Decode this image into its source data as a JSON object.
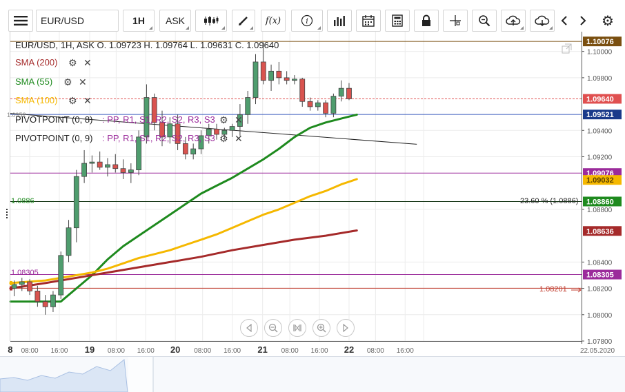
{
  "toolbar": {
    "menu_icon": "hamburger-icon",
    "symbol": "EUR/USD",
    "timeframe": "1H",
    "price_type": "ASK",
    "icons": [
      "candlestick-icon",
      "draw-pen-icon",
      "function-icon",
      "info-icon",
      "bar-chart-icon",
      "calendar-icon",
      "calculator-icon",
      "lock-icon",
      "crosshair-icon",
      "zoom-icon",
      "cloud-upload-icon",
      "cloud-download-icon",
      "chevron-left-icon",
      "chevron-right-icon",
      "gear-icon"
    ],
    "fx_label": "f(x)"
  },
  "legend": {
    "ohlc": "EUR/USD, 1H, ASK    O. 1.09723 H. 1.09764 L. 1.09631 C. 1.09640",
    "sma200": "SMA (200)",
    "sma55": "SMA (55)",
    "sma100": "SMA (100)",
    "pivot1_name": "PIVOTPOINT (0, 8)",
    "pivot1_fields": ": PP, R1, S1, R2, S2, R3, S3",
    "pivot2_name": "PIVOTPOINT (0, 9)",
    "pivot2_fields": ": PP, R1, S1, R2, S2, R3, S3",
    "fib_label": "23.60 % (1.0886)",
    "left_label_top": "1.0886",
    "left_label_low": "1.0830",
    "left_label_low2": "1.08305",
    "left_label_high": "1.10076",
    "hidden_label": "1.0952",
    "right_arrow_label": "1.08201"
  },
  "colors": {
    "sma200": "#a52a2a",
    "sma55": "#1e8a1e",
    "sma100": "#f5b800",
    "candle_up": "#4f9d6e",
    "candle_down": "#d9534f",
    "pivot_purple": "#9b2b9b",
    "blue_line": "#3b5bbd",
    "fib_line": "#1a3a1a"
  },
  "chart_data": {
    "type": "candlestick",
    "symbol": "EUR/USD",
    "timeframe": "1H",
    "ylim": [
      1.078,
      1.1015
    ],
    "y_ticks": [
      "1.10000",
      "1.09800",
      "1.09400",
      "1.09200",
      "1.08800",
      "1.08400",
      "1.08200",
      "1.08000",
      "1.07800"
    ],
    "x_ticks": [
      "8",
      "08:00",
      "16:00",
      "19",
      "08:00",
      "16:00",
      "20",
      "08:00",
      "16:00",
      "21",
      "08:00",
      "16:00",
      "22",
      "08:00",
      "16:00",
      "22.05.2020"
    ],
    "x_tick_positions": [
      -0.5,
      2,
      5.8,
      9.7,
      13.1,
      16.9,
      20.7,
      24.2,
      28,
      31.9,
      35.4,
      39.2,
      43,
      46.4,
      50.2,
      52.6
    ],
    "price_labels": [
      {
        "text": "1.10076",
        "value": 1.10076,
        "color": "#7a4f10"
      },
      {
        "text": "1.09640",
        "value": 1.0964,
        "color": "#e05050"
      },
      {
        "text": "1.09521",
        "value": 1.09521,
        "color": "#1a3a8a"
      },
      {
        "text": "1.09076",
        "value": 1.09076,
        "color": "#9b2b9b"
      },
      {
        "text": "1.09032",
        "value": 1.09032,
        "color": "#f5b800"
      },
      {
        "text": "1.08860",
        "value": 1.0886,
        "color": "#1e8a1e"
      },
      {
        "text": "1.08636",
        "value": 1.08636,
        "color": "#a52a2a"
      },
      {
        "text": "1.08305",
        "value": 1.08305,
        "color": "#9b2b9b"
      }
    ],
    "horizontal_lines": [
      {
        "value": 1.10076,
        "color": "#7a4f10"
      },
      {
        "value": 1.0964,
        "color": "#e05050",
        "dashed": true
      },
      {
        "value": 1.09521,
        "color": "#3b5bbd"
      },
      {
        "value": 1.09076,
        "color": "#9b2b9b"
      },
      {
        "value": 1.0886,
        "color": "#1a3a1a"
      },
      {
        "value": 1.08305,
        "color": "#9b2b9b"
      },
      {
        "value": 1.08201,
        "color": "#c0392b"
      }
    ],
    "trendline": {
      "x1": -0.5,
      "y1": 1.09529,
      "x2": 51.7,
      "y2": 1.09295
    },
    "candles": [
      {
        "o": 1.082,
        "h": 1.0826,
        "l": 1.0814,
        "c": 1.0823
      },
      {
        "o": 1.0823,
        "h": 1.0828,
        "l": 1.0818,
        "c": 1.0825
      },
      {
        "o": 1.0825,
        "h": 1.0827,
        "l": 1.0815,
        "c": 1.0818
      },
      {
        "o": 1.0818,
        "h": 1.0822,
        "l": 1.0806,
        "c": 1.081
      },
      {
        "o": 1.081,
        "h": 1.0815,
        "l": 1.08,
        "c": 1.0806
      },
      {
        "o": 1.0806,
        "h": 1.0818,
        "l": 1.0802,
        "c": 1.0815
      },
      {
        "o": 1.0815,
        "h": 1.0848,
        "l": 1.0812,
        "c": 1.0845
      },
      {
        "o": 1.0845,
        "h": 1.0872,
        "l": 1.084,
        "c": 1.0866
      },
      {
        "o": 1.0866,
        "h": 1.091,
        "l": 1.0855,
        "c": 1.0905
      },
      {
        "o": 1.0905,
        "h": 1.0925,
        "l": 1.09,
        "c": 1.0915
      },
      {
        "o": 1.0915,
        "h": 1.0921,
        "l": 1.0908,
        "c": 1.0916
      },
      {
        "o": 1.0916,
        "h": 1.0924,
        "l": 1.091,
        "c": 1.0912
      },
      {
        "o": 1.0912,
        "h": 1.0919,
        "l": 1.0905,
        "c": 1.0914
      },
      {
        "o": 1.0914,
        "h": 1.0922,
        "l": 1.0908,
        "c": 1.0911
      },
      {
        "o": 1.0911,
        "h": 1.0918,
        "l": 1.0903,
        "c": 1.0908
      },
      {
        "o": 1.0908,
        "h": 1.0915,
        "l": 1.09,
        "c": 1.091
      },
      {
        "o": 1.091,
        "h": 1.094,
        "l": 1.0906,
        "c": 1.0935
      },
      {
        "o": 1.0935,
        "h": 1.0975,
        "l": 1.093,
        "c": 1.0965
      },
      {
        "o": 1.0965,
        "h": 1.0968,
        "l": 1.094,
        "c": 1.0946
      },
      {
        "o": 1.0946,
        "h": 1.0955,
        "l": 1.0928,
        "c": 1.0935
      },
      {
        "o": 1.0935,
        "h": 1.095,
        "l": 1.093,
        "c": 1.0945
      },
      {
        "o": 1.0945,
        "h": 1.0952,
        "l": 1.0925,
        "c": 1.093
      },
      {
        "o": 1.093,
        "h": 1.0935,
        "l": 1.0918,
        "c": 1.0922
      },
      {
        "o": 1.0922,
        "h": 1.093,
        "l": 1.0918,
        "c": 1.0926
      },
      {
        "o": 1.0926,
        "h": 1.094,
        "l": 1.0922,
        "c": 1.0936
      },
      {
        "o": 1.0936,
        "h": 1.0945,
        "l": 1.093,
        "c": 1.0941
      },
      {
        "o": 1.0941,
        "h": 1.0945,
        "l": 1.0933,
        "c": 1.0937
      },
      {
        "o": 1.0937,
        "h": 1.0942,
        "l": 1.0933,
        "c": 1.094
      },
      {
        "o": 1.094,
        "h": 1.0945,
        "l": 1.0935,
        "c": 1.0943
      },
      {
        "o": 1.0943,
        "h": 1.096,
        "l": 1.0936,
        "c": 1.0952
      },
      {
        "o": 1.0952,
        "h": 1.097,
        "l": 1.0945,
        "c": 1.0965
      },
      {
        "o": 1.0965,
        "h": 1.0998,
        "l": 1.096,
        "c": 1.0992
      },
      {
        "o": 1.0992,
        "h": 1.1007,
        "l": 1.0975,
        "c": 1.0978
      },
      {
        "o": 1.0978,
        "h": 1.099,
        "l": 1.097,
        "c": 1.0985
      },
      {
        "o": 1.0985,
        "h": 1.0992,
        "l": 1.0975,
        "c": 1.098
      },
      {
        "o": 1.098,
        "h": 1.0985,
        "l": 1.0975,
        "c": 1.0978
      },
      {
        "o": 1.0978,
        "h": 1.0982,
        "l": 1.0975,
        "c": 1.0979
      },
      {
        "o": 1.0979,
        "h": 1.098,
        "l": 1.0958,
        "c": 1.0962
      },
      {
        "o": 1.0962,
        "h": 1.0965,
        "l": 1.0955,
        "c": 1.0958
      },
      {
        "o": 1.0958,
        "h": 1.0963,
        "l": 1.0955,
        "c": 1.0961
      },
      {
        "o": 1.0961,
        "h": 1.0963,
        "l": 1.095,
        "c": 1.0953
      },
      {
        "o": 1.0953,
        "h": 1.0968,
        "l": 1.095,
        "c": 1.0966
      },
      {
        "o": 1.0966,
        "h": 1.0978,
        "l": 1.0962,
        "c": 1.0972
      },
      {
        "o": 1.0972,
        "h": 1.0976,
        "l": 1.0963,
        "c": 1.0964
      }
    ],
    "series": [
      {
        "name": "SMA (55)",
        "color": "#1e8a1e",
        "x": [
          -0.5,
          6,
          8,
          10,
          12,
          14,
          16,
          18,
          20,
          22,
          24,
          26,
          28,
          30,
          32,
          34,
          36,
          38,
          40,
          42,
          44
        ],
        "y": [
          1.081,
          1.081,
          1.082,
          1.083,
          1.0842,
          1.0852,
          1.086,
          1.0868,
          1.0876,
          1.0884,
          1.0892,
          1.0898,
          1.0904,
          1.0911,
          1.0918,
          1.0926,
          1.0935,
          1.0942,
          1.0946,
          1.0949,
          1.0952
        ]
      },
      {
        "name": "SMA (100)",
        "color": "#f5b800",
        "x": [
          -0.5,
          4,
          8,
          10,
          12,
          14,
          16,
          18,
          20,
          22,
          24,
          26,
          28,
          30,
          32,
          34,
          36,
          38,
          40,
          42,
          44
        ],
        "y": [
          1.0824,
          1.0826,
          1.083,
          1.0832,
          1.0835,
          1.0839,
          1.0843,
          1.0846,
          1.0849,
          1.0853,
          1.0857,
          1.0861,
          1.0866,
          1.0871,
          1.0876,
          1.088,
          1.0885,
          1.089,
          1.0894,
          1.0899,
          1.0903
        ]
      },
      {
        "name": "SMA (200)",
        "color": "#a52a2a",
        "x": [
          -0.5,
          4,
          8,
          12,
          16,
          20,
          24,
          28,
          32,
          36,
          40,
          44
        ],
        "y": [
          1.082,
          1.0824,
          1.0828,
          1.0832,
          1.0836,
          1.084,
          1.0844,
          1.0849,
          1.0853,
          1.0857,
          1.086,
          1.0864
        ]
      }
    ]
  }
}
